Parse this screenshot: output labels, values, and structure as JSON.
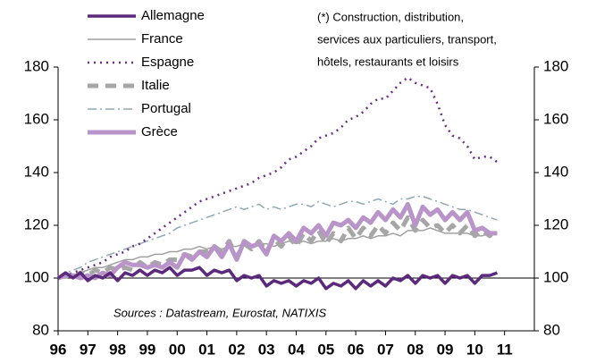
{
  "chart_data": {
    "type": "line",
    "annotation": [
      "(*) Construction, distribution,",
      "services aux particuliers, transport,",
      "hôtels, restaurants et loisirs"
    ],
    "source": "Sources : Datastream, Eurostat, NATIXIS",
    "x": [
      1996,
      1996.25,
      1996.5,
      1996.75,
      1997,
      1997.25,
      1997.5,
      1997.75,
      1998,
      1998.25,
      1998.5,
      1998.75,
      1999,
      1999.25,
      1999.5,
      1999.75,
      2000,
      2000.25,
      2000.5,
      2000.75,
      2001,
      2001.25,
      2001.5,
      2001.75,
      2002,
      2002.25,
      2002.5,
      2002.75,
      2003,
      2003.25,
      2003.5,
      2003.75,
      2004,
      2004.25,
      2004.5,
      2004.75,
      2005,
      2005.25,
      2005.5,
      2005.75,
      2006,
      2006.25,
      2006.5,
      2006.75,
      2007,
      2007.25,
      2007.5,
      2007.75,
      2008,
      2008.25,
      2008.5,
      2008.75,
      2009,
      2009.25,
      2009.5,
      2009.75,
      2010,
      2010.25,
      2010.5,
      2010.75
    ],
    "xlim": [
      1996,
      2012
    ],
    "xticks": [
      {
        "value": 1996,
        "label": "96"
      },
      {
        "value": 1997,
        "label": "97"
      },
      {
        "value": 1998,
        "label": "98"
      },
      {
        "value": 1999,
        "label": "99"
      },
      {
        "value": 2000,
        "label": "00"
      },
      {
        "value": 2001,
        "label": "01"
      },
      {
        "value": 2002,
        "label": "02"
      },
      {
        "value": 2003,
        "label": "03"
      },
      {
        "value": 2004,
        "label": "04"
      },
      {
        "value": 2005,
        "label": "05"
      },
      {
        "value": 2006,
        "label": "06"
      },
      {
        "value": 2007,
        "label": "07"
      },
      {
        "value": 2008,
        "label": "08"
      },
      {
        "value": 2009,
        "label": "09"
      },
      {
        "value": 2010,
        "label": "10"
      },
      {
        "value": 2011,
        "label": "11"
      }
    ],
    "ylim": [
      80,
      180
    ],
    "yticks": [
      80,
      100,
      120,
      140,
      160,
      180
    ],
    "y2lim": [
      80,
      180
    ],
    "y2ticks": [
      80,
      100,
      120,
      140,
      160,
      180
    ],
    "hline": 100,
    "series": [
      {
        "name": "Allemagne",
        "color": "#5c2a7c",
        "width": 3.5,
        "dash": "none",
        "values": [
          100,
          102,
          100,
          102,
          99,
          101,
          100,
          102,
          99,
          102,
          101,
          103,
          101,
          103,
          102,
          104,
          101,
          103,
          103,
          104,
          101,
          103,
          102,
          103,
          99,
          101,
          100,
          101,
          97,
          99,
          98,
          99,
          97,
          99,
          98,
          100,
          96,
          98,
          97,
          99,
          96,
          99,
          97,
          99,
          97,
          100,
          99,
          101,
          98,
          101,
          100,
          101,
          98,
          101,
          100,
          101,
          98,
          101,
          101,
          102
        ]
      },
      {
        "name": "France",
        "color": "#a0a0a0",
        "width": 1.5,
        "dash": "none",
        "values": [
          100,
          100,
          101,
          102,
          103,
          104,
          104,
          105,
          106,
          107,
          107,
          108,
          108,
          109,
          109,
          110,
          110,
          111,
          111,
          112,
          111,
          112,
          111,
          112,
          112,
          113,
          112,
          113,
          113,
          112,
          113,
          114,
          113,
          114,
          113,
          114,
          114,
          115,
          114,
          115,
          115,
          116,
          115,
          116,
          116,
          117,
          116,
          118,
          118,
          118,
          119,
          118,
          117,
          117,
          117,
          117,
          116,
          116,
          117,
          117
        ]
      },
      {
        "name": "Espagne",
        "color": "#6b2a86",
        "width": 2.5,
        "dash": "2,5",
        "values": [
          100,
          101,
          102,
          103,
          104,
          105,
          106,
          108,
          109,
          110,
          112,
          113,
          115,
          117,
          119,
          121,
          123,
          125,
          127,
          129,
          130,
          131,
          132,
          133,
          134,
          135,
          136,
          138,
          139,
          140,
          142,
          145,
          146,
          148,
          150,
          153,
          154,
          155,
          157,
          160,
          161,
          163,
          166,
          168,
          168,
          171,
          174,
          176,
          174,
          173,
          172,
          166,
          158,
          154,
          153,
          150,
          145,
          146,
          146,
          144
        ]
      },
      {
        "name": "Italie",
        "color": "#a6a6a6",
        "width": 5,
        "dash": "12,8",
        "values": [
          100,
          101,
          100,
          102,
          101,
          103,
          102,
          104,
          103,
          104,
          103,
          106,
          104,
          106,
          105,
          107,
          107,
          109,
          108,
          110,
          110,
          112,
          110,
          114,
          108,
          113,
          111,
          114,
          110,
          115,
          112,
          116,
          112,
          117,
          114,
          118,
          113,
          117,
          114,
          119,
          115,
          119,
          116,
          120,
          117,
          121,
          118,
          123,
          118,
          122,
          119,
          120,
          117,
          120,
          117,
          120,
          116,
          118,
          116,
          119
        ]
      },
      {
        "name": "Portugal",
        "color": "#8fa9b0",
        "width": 1.5,
        "dash": "10,4,2,4",
        "values": [
          100,
          102,
          103,
          104,
          106,
          107,
          108,
          109,
          110,
          111,
          112,
          113,
          114,
          115,
          116,
          117,
          119,
          120,
          121,
          122,
          123,
          124,
          125,
          126,
          127,
          126,
          127,
          128,
          126,
          127,
          126,
          127,
          128,
          128,
          127,
          129,
          128,
          127,
          128,
          129,
          129,
          128,
          129,
          130,
          129,
          128,
          130,
          130,
          131,
          131,
          130,
          129,
          128,
          127,
          126,
          126,
          125,
          124,
          123,
          122
        ]
      },
      {
        "name": "Grèce",
        "color": "#b894c8",
        "width": 5,
        "dash": "none",
        "values": [
          100,
          101,
          101,
          100,
          101,
          100,
          102,
          101,
          104,
          106,
          105,
          105,
          104,
          105,
          104,
          106,
          104,
          109,
          107,
          110,
          108,
          112,
          108,
          113,
          107,
          114,
          112,
          113,
          109,
          116,
          114,
          117,
          114,
          119,
          117,
          120,
          116,
          121,
          120,
          122,
          119,
          123,
          121,
          125,
          122,
          126,
          123,
          128,
          120,
          127,
          124,
          126,
          122,
          125,
          122,
          125,
          118,
          119,
          117,
          117
        ]
      }
    ]
  }
}
